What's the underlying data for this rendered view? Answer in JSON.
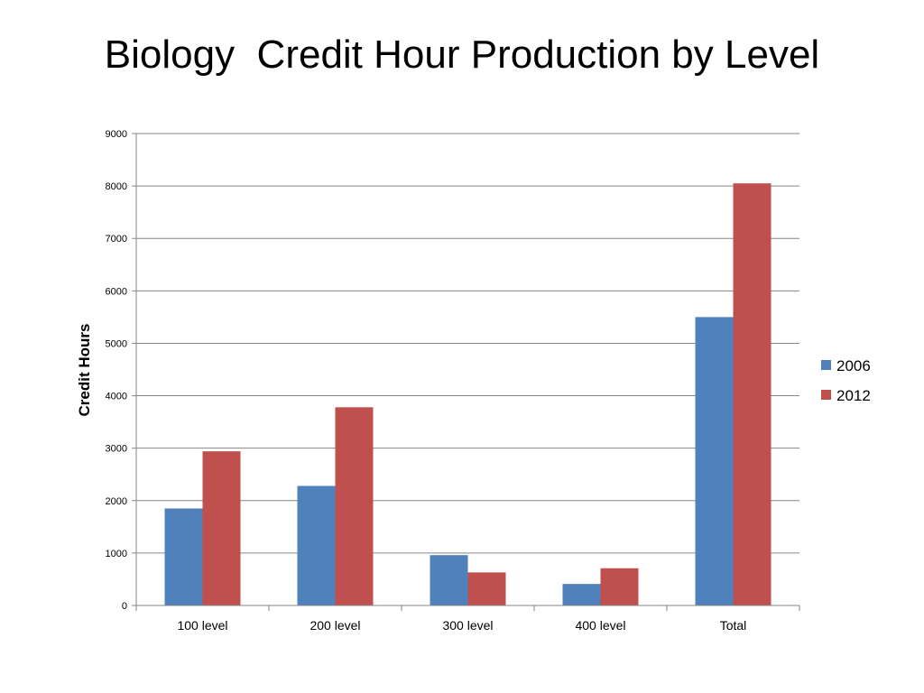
{
  "chart_data": {
    "type": "bar",
    "title": "Biology  Credit Hour Production by Level",
    "xlabel": "",
    "ylabel": "Credit Hours",
    "categories": [
      "100 level",
      "200 level",
      "300 level",
      "400 level",
      "Total"
    ],
    "series": [
      {
        "name": "2006",
        "color": "#4F81BD",
        "values": [
          1850,
          2280,
          960,
          410,
          5500
        ]
      },
      {
        "name": "2012",
        "color": "#C0504D",
        "values": [
          2940,
          3780,
          630,
          710,
          8050
        ]
      }
    ],
    "ylim": [
      0,
      9000
    ],
    "yticks": [
      0,
      1000,
      2000,
      3000,
      4000,
      5000,
      6000,
      7000,
      8000,
      9000
    ],
    "grid": true,
    "legend": "right"
  }
}
